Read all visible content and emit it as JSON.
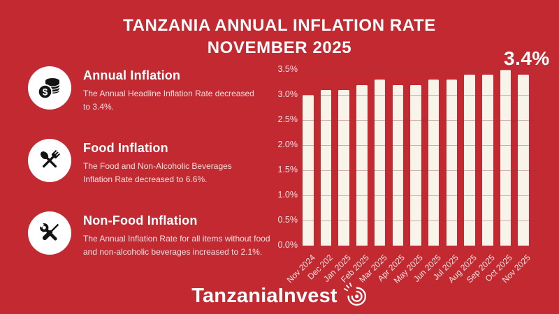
{
  "theme": {
    "background": "#C22931",
    "bar_color": "#F8F4EA",
    "icon_color": "#141414",
    "text_color": "#FFFFFF",
    "muted_text_color": "#F3E2E2"
  },
  "header": {
    "title_line1": "TANZANIA ANNUAL INFLATION RATE",
    "title_line2": "NOVEMBER 2025"
  },
  "info_items": [
    {
      "icon": "coins-icon",
      "title": "Annual Inflation",
      "description": "The Annual Headline Inflation Rate decreased to 3.4%."
    },
    {
      "icon": "utensils-icon",
      "title": "Food Inflation",
      "description": "The Food and Non-Alcoholic Beverages Inflation Rate decreased to 6.6%."
    },
    {
      "icon": "tools-icon",
      "title": "Non-Food Inflation",
      "description": "The Annual Inflation Rate for all items without food and non-alcoholic beverages increased to 2.1%."
    }
  ],
  "chart_data": {
    "type": "bar",
    "title": "Tanzania Annual Inflation Rate, Nov 2024 - Nov 2025",
    "categories": [
      "Nov 2024",
      "Dec 202",
      "Jan 2025",
      "Feb 2025",
      "Mar 2025",
      "Apr 2025",
      "May 2025",
      "Jun 2025",
      "Jul 2025",
      "Aug 2025",
      "Sep 2025",
      "Oct 2025",
      "Nov 2025"
    ],
    "values": [
      3.0,
      3.1,
      3.1,
      3.2,
      3.3,
      3.2,
      3.2,
      3.3,
      3.3,
      3.4,
      3.4,
      3.5,
      3.4
    ],
    "xlabel": "",
    "ylabel": "",
    "ylim": [
      0,
      3.5
    ],
    "ytick_step": 0.5,
    "yticks": [
      "0.0%",
      "0.5%",
      "1.0%",
      "1.5%",
      "2.0%",
      "2.5%",
      "3.0%",
      "3.5%"
    ],
    "grid": true,
    "legend": false,
    "annotation": "3.4%",
    "annotation_target": "Nov 2025"
  },
  "footer": {
    "brand": "TanzaniaInvest"
  }
}
